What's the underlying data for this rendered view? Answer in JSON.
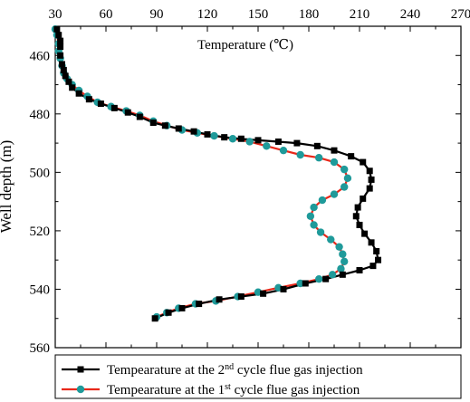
{
  "chart_data": {
    "type": "line",
    "orientation": "depth-profile",
    "x_axis_position": "top",
    "y_axis_inverted": true,
    "title": "Temperature (℃)",
    "xlabel": "",
    "ylabel": "Well depth (m)",
    "xlim": [
      30,
      270
    ],
    "ylim": [
      450,
      560
    ],
    "xticks": [
      30,
      60,
      90,
      120,
      150,
      180,
      210,
      240,
      270
    ],
    "yticks": [
      460,
      480,
      500,
      520,
      540,
      560
    ],
    "grid": false,
    "legend_position": "bottom",
    "series": [
      {
        "name": "Tempearature at the 2nd cycle flue gas injection",
        "legend_prefix": "Tempearature at the 2",
        "legend_sup": "nd",
        "legend_suffix": " cycle flue gas injection",
        "color": "#000000",
        "line_color": "#000000",
        "marker": "square",
        "points": [
          [
            31,
            451
          ],
          [
            32,
            453
          ],
          [
            33,
            455
          ],
          [
            33,
            457
          ],
          [
            33,
            460
          ],
          [
            34,
            463
          ],
          [
            35,
            465
          ],
          [
            36,
            467
          ],
          [
            38,
            469
          ],
          [
            40,
            471
          ],
          [
            44,
            473
          ],
          [
            50,
            475
          ],
          [
            57,
            476.5
          ],
          [
            65,
            478
          ],
          [
            73,
            479.5
          ],
          [
            80,
            481
          ],
          [
            88,
            483
          ],
          [
            95,
            484
          ],
          [
            103,
            485
          ],
          [
            112,
            486
          ],
          [
            120,
            487
          ],
          [
            130,
            488
          ],
          [
            140,
            488.5
          ],
          [
            150,
            489
          ],
          [
            162,
            489.5
          ],
          [
            173,
            490
          ],
          [
            185,
            491
          ],
          [
            195,
            492.5
          ],
          [
            205,
            494.5
          ],
          [
            212,
            496.5
          ],
          [
            216,
            499.5
          ],
          [
            217,
            502.5
          ],
          [
            216,
            505.5
          ],
          [
            212,
            509
          ],
          [
            209,
            512
          ],
          [
            208,
            515
          ],
          [
            210,
            518
          ],
          [
            213,
            521
          ],
          [
            217,
            524
          ],
          [
            220,
            527
          ],
          [
            221,
            530
          ],
          [
            218,
            532
          ],
          [
            210,
            533.5
          ],
          [
            200,
            535
          ],
          [
            190,
            536.5
          ],
          [
            178,
            538
          ],
          [
            165,
            540
          ],
          [
            153,
            541.5
          ],
          [
            140,
            542.5
          ],
          [
            127,
            543.5
          ],
          [
            115,
            545
          ],
          [
            105,
            546.5
          ],
          [
            97,
            548
          ],
          [
            89,
            550
          ]
        ]
      },
      {
        "name": "Tempearature at the 1st cycle flue gas injection",
        "legend_prefix": "Tempearature at the 1",
        "legend_sup": "st",
        "legend_suffix": " cycle flue gas injection",
        "color": "#1f9a9a",
        "line_color": "#e8281a",
        "marker": "circle",
        "points": [
          [
            30,
            451
          ],
          [
            31,
            453
          ],
          [
            32,
            456
          ],
          [
            32,
            458.5
          ],
          [
            33,
            461
          ],
          [
            34,
            463.5
          ],
          [
            35,
            466
          ],
          [
            37,
            468
          ],
          [
            40,
            470
          ],
          [
            44,
            472
          ],
          [
            49,
            474
          ],
          [
            55,
            476
          ],
          [
            63,
            477.5
          ],
          [
            72,
            479
          ],
          [
            80,
            480.5
          ],
          [
            88,
            482.5
          ],
          [
            96,
            484
          ],
          [
            105,
            485.5
          ],
          [
            114,
            486.5
          ],
          [
            124,
            487.5
          ],
          [
            135,
            488.5
          ],
          [
            145,
            489.5
          ],
          [
            155,
            491
          ],
          [
            165,
            492.5
          ],
          [
            175,
            494
          ],
          [
            186,
            495
          ],
          [
            195,
            496.5
          ],
          [
            201,
            499
          ],
          [
            203,
            502
          ],
          [
            201,
            505
          ],
          [
            195,
            507.5
          ],
          [
            188,
            509.5
          ],
          [
            183,
            512
          ],
          [
            181,
            515
          ],
          [
            183,
            518
          ],
          [
            187,
            520.5
          ],
          [
            193,
            523
          ],
          [
            198,
            525.5
          ],
          [
            200,
            528
          ],
          [
            201,
            530.5
          ],
          [
            199,
            533
          ],
          [
            194,
            535
          ],
          [
            186,
            536.5
          ],
          [
            175,
            538
          ],
          [
            162,
            539.5
          ],
          [
            150,
            541
          ],
          [
            138,
            542.5
          ],
          [
            125,
            544
          ],
          [
            113,
            545
          ],
          [
            103,
            546.5
          ],
          [
            96,
            548
          ],
          [
            90,
            549.5
          ]
        ]
      }
    ]
  }
}
